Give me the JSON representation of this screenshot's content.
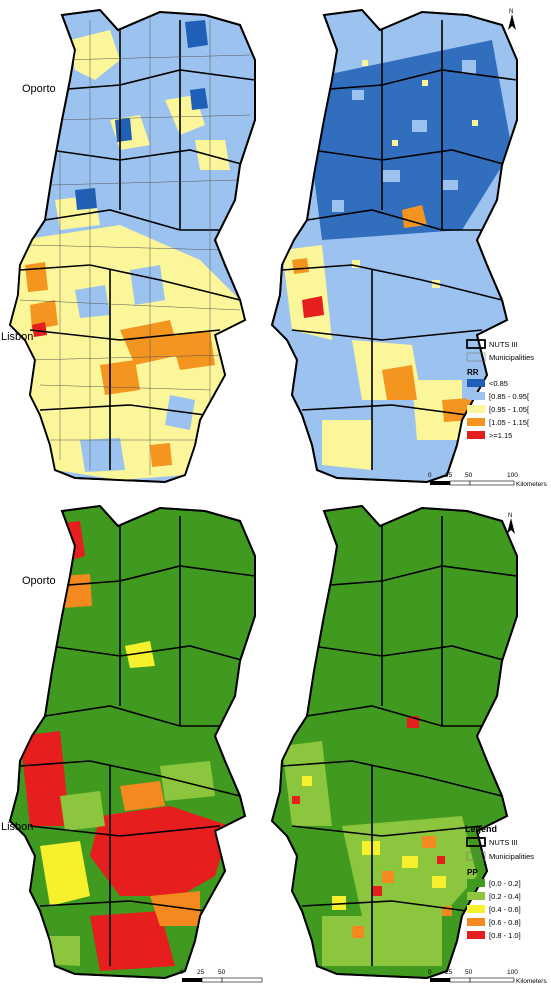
{
  "cities": {
    "oporto": "Oporto",
    "lisbon": "Lisbon"
  },
  "legend_rr": {
    "nuts": "NUTS III",
    "municipalities": "Municipalities",
    "title": "RR",
    "classes": [
      "<0.85",
      "[0.85 - 0.95[",
      "[0.95 - 1.05[",
      "[1.05 - 1.15[",
      ">=1.15"
    ],
    "colors": [
      "#1f5fb5",
      "#9cc3ef",
      "#fbf699",
      "#f3951f",
      "#e61e1e"
    ]
  },
  "legend_pp": {
    "heading": "Legend",
    "nuts": "NUTS III",
    "municipalities": "Municipalities",
    "title": "PP",
    "classes": [
      "[0.0 - 0.2]",
      "[0.2 - 0.4]",
      "[0.4 - 0.6]",
      "[0.6 - 0.8]",
      "[0.8 - 1.0]"
    ],
    "colors": [
      "#3f9a1f",
      "#8cc63f",
      "#f6f12c",
      "#f3891f",
      "#e61e1e"
    ]
  },
  "scalebar": {
    "ticks": [
      "0",
      "25",
      "50",
      "100"
    ],
    "unit": "Kilometers"
  },
  "north": "N"
}
